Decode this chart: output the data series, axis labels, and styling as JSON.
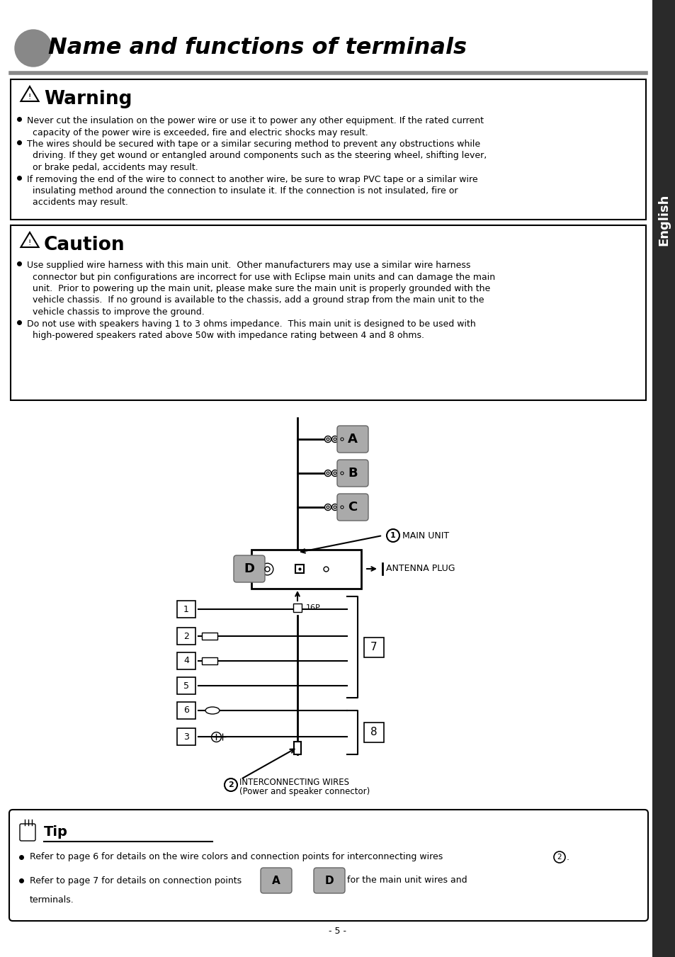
{
  "title": "Name and functions of terminals",
  "bg_color": "#ffffff",
  "sidebar_color": "#2c2c2c",
  "sidebar_text": "English",
  "warning_title": "Warning",
  "warning_bullets": [
    "Never cut the insulation on the power wire or use it to power any other equipment. If the rated current",
    "  capacity of the power wire is exceeded, fire and electric shocks may result.",
    "The wires should be secured with tape or a similar securing method to prevent any obstructions while",
    "  driving. If they get wound or entangled around components such as the steering wheel, shifting lever,",
    "  or brake pedal, accidents may result.",
    "If removing the end of the wire to connect to another wire, be sure to wrap PVC tape or a similar wire",
    "  insulating method around the connection to insulate it. If the connection is not insulated, fire or",
    "  accidents may result."
  ],
  "caution_title": "Caution",
  "caution_bullets": [
    "Use supplied wire harness with this main unit.  Other manufacturers may use a similar wire harness",
    "  connector but pin configurations are incorrect for use with Eclipse main units and can damage the main",
    "  unit.  Prior to powering up the main unit, please make sure the main unit is properly grounded with the",
    "  vehicle chassis.  If no ground is available to the chassis, add a ground strap from the main unit to the",
    "  vehicle chassis to improve the ground.",
    "Do not use with speakers having 1 to 3 ohms impedance.  This main unit is designed to be used with",
    "  high-powered speakers rated above 50w with impedance rating between 4 and 8 ohms."
  ],
  "tip_title": "Tip",
  "page_number": "- 5 -"
}
